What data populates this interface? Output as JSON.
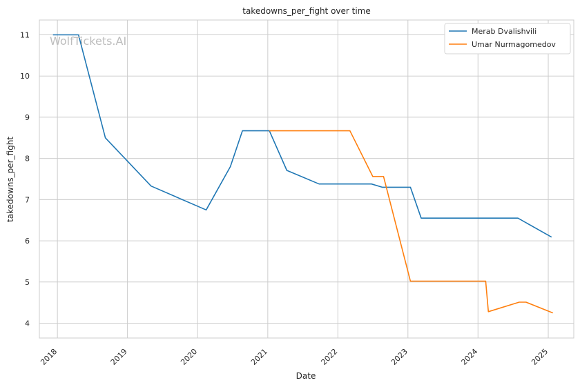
{
  "watermark": "WolfTickets.AI",
  "chart_data": {
    "type": "line",
    "title": "takedowns_per_fight over time",
    "xlabel": "Date",
    "ylabel": "takedowns_per_fight",
    "x_ticks": [
      "2018",
      "2019",
      "2020",
      "2021",
      "2022",
      "2023",
      "2024",
      "2025"
    ],
    "y_ticks": [
      4,
      5,
      6,
      7,
      8,
      9,
      10,
      11
    ],
    "xlim": [
      "2017-09-29",
      "2025-05-14"
    ],
    "ylim": [
      3.64,
      11.36
    ],
    "grid": true,
    "legend_position": "top-right",
    "series": [
      {
        "name": "Merab Dvalishvili",
        "color": "#1f77b4",
        "points": [
          [
            "2017-12-09",
            11.0
          ],
          [
            "2018-04-21",
            11.0
          ],
          [
            "2018-09-08",
            8.5
          ],
          [
            "2019-05-04",
            7.33
          ],
          [
            "2020-02-15",
            6.75
          ],
          [
            "2020-06-20",
            7.8
          ],
          [
            "2020-08-22",
            8.67
          ],
          [
            "2021-01-09",
            8.67
          ],
          [
            "2021-04-10",
            7.71
          ],
          [
            "2021-09-25",
            7.38
          ],
          [
            "2022-06-25",
            7.38
          ],
          [
            "2022-08-20",
            7.3
          ],
          [
            "2023-01-14",
            7.3
          ],
          [
            "2023-03-11",
            6.55
          ],
          [
            "2024-07-27",
            6.55
          ],
          [
            "2025-01-18",
            6.09
          ]
        ]
      },
      {
        "name": "Umar Nurmagomedov",
        "color": "#ff7f0e",
        "points": [
          [
            "2021-01-09",
            8.67
          ],
          [
            "2022-03-05",
            8.67
          ],
          [
            "2022-07-02",
            7.56
          ],
          [
            "2022-08-27",
            7.56
          ],
          [
            "2023-01-14",
            5.02
          ],
          [
            "2024-02-10",
            5.02
          ],
          [
            "2024-02-24",
            4.28
          ],
          [
            "2024-08-03",
            4.51
          ],
          [
            "2024-09-07",
            4.51
          ],
          [
            "2025-01-25",
            4.25
          ]
        ]
      }
    ]
  }
}
